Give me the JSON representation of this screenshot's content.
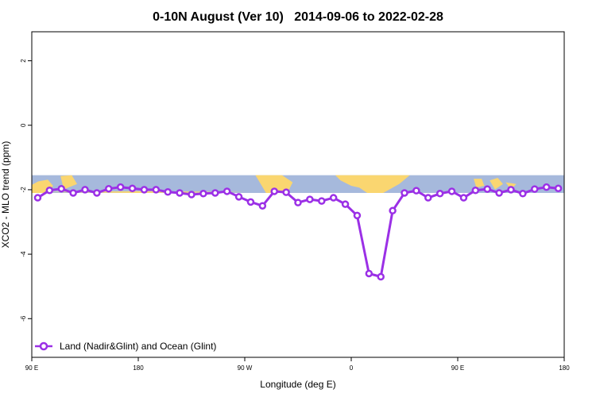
{
  "chart_data": {
    "type": "line",
    "title": "0-10N August (Ver 10)   2014-09-06 to 2022-02-28",
    "xlabel": "Longitude (deg E)",
    "ylabel": "XCO2 - MLO trend (ppm)",
    "xlim": [
      90,
      540
    ],
    "ylim": [
      -7.2,
      2.9
    ],
    "x_ticks": [
      {
        "value": 90,
        "label": "90 E"
      },
      {
        "value": 180,
        "label": "180"
      },
      {
        "value": 270,
        "label": "90 W"
      },
      {
        "value": 360,
        "label": "0"
      },
      {
        "value": 450,
        "label": "90 E"
      },
      {
        "value": 540,
        "label": "180"
      }
    ],
    "y_ticks": [
      {
        "value": 2,
        "label": "2"
      },
      {
        "value": 0,
        "label": "0"
      },
      {
        "value": -2,
        "label": "-2"
      },
      {
        "value": -4,
        "label": "-4"
      },
      {
        "value": -6,
        "label": "-6"
      }
    ],
    "x_axis_note": "x values in degrees east, continuing past 360 (450 = 90 E, 540 = 180)",
    "map_strip": {
      "y_range": [
        -2.1,
        -1.55
      ],
      "ocean_color": "#a6b9dc",
      "land_color": "#fad670"
    },
    "series": [
      {
        "name": "Land (Nadir&Glint) and Ocean (Glint)",
        "color": "#9b30e6",
        "marker": "open-circle",
        "x": [
          95,
          105,
          115,
          125,
          135,
          145,
          155,
          165,
          175,
          185,
          195,
          205,
          215,
          225,
          235,
          245,
          255,
          265,
          275,
          285,
          295,
          305,
          315,
          325,
          335,
          345,
          355,
          365,
          375,
          385,
          395,
          405,
          415,
          425,
          435,
          445,
          455,
          465,
          475,
          485,
          495,
          505,
          515,
          525,
          535
        ],
        "values": [
          -2.25,
          -2.02,
          -1.97,
          -2.1,
          -2.0,
          -2.1,
          -1.97,
          -1.92,
          -1.96,
          -2.0,
          -2.0,
          -2.07,
          -2.1,
          -2.15,
          -2.12,
          -2.1,
          -2.05,
          -2.22,
          -2.38,
          -2.5,
          -2.05,
          -2.08,
          -2.4,
          -2.3,
          -2.35,
          -2.25,
          -2.45,
          -2.8,
          -4.6,
          -4.7,
          -2.65,
          -2.1,
          -2.03,
          -2.25,
          -2.12,
          -2.05,
          -2.25,
          -2.02,
          -1.98,
          -2.1,
          -2.0,
          -2.12,
          -1.98,
          -1.92,
          -1.96
        ]
      }
    ],
    "legend_position": "bottom-left"
  }
}
